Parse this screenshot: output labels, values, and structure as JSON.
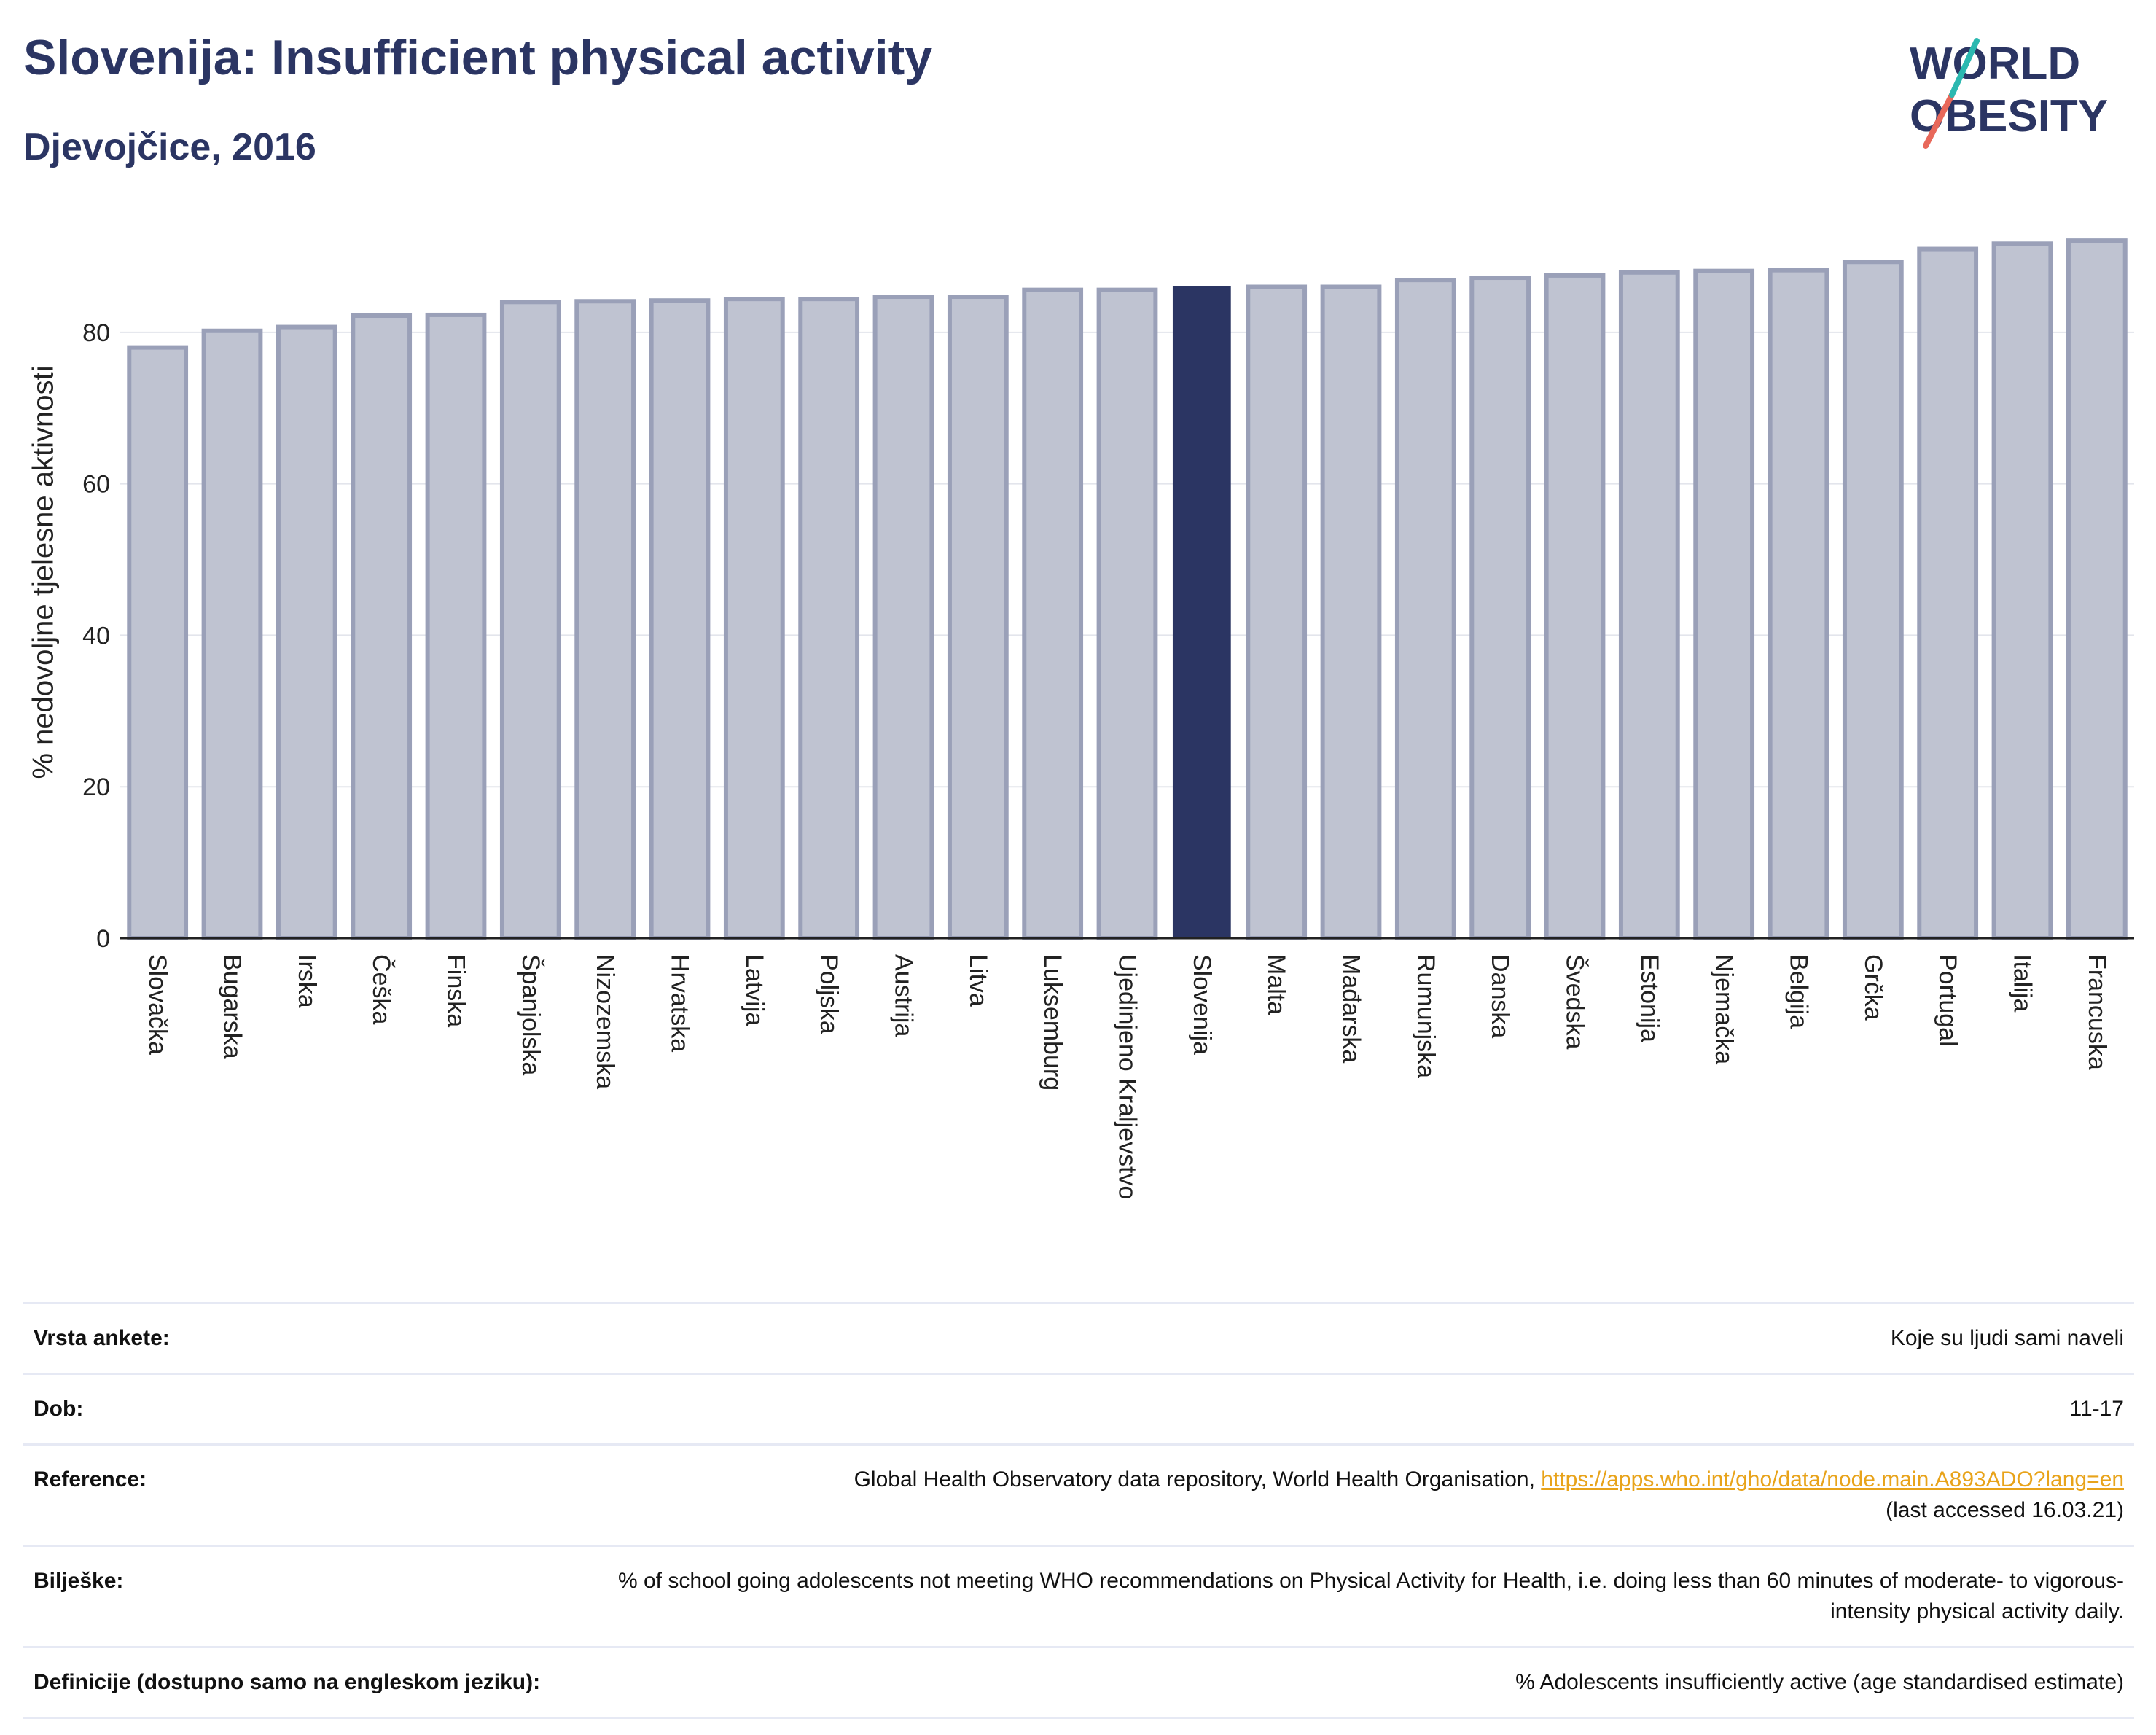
{
  "header": {
    "title": "Slovenija: Insufficient physical activity",
    "subtitle": "Djevojčice, 2016"
  },
  "logo": {
    "line1": "WORLD",
    "line2": "OBESITY"
  },
  "colors": {
    "highlight": "#2b3563",
    "bar": "#bfc3d1",
    "bar_border": "#9aa0b8",
    "title": "#2b3563",
    "link": "#e8a31a"
  },
  "chart_data": {
    "type": "bar",
    "title": "Slovenija: Insufficient physical activity",
    "subtitle": "Djevojčice, 2016",
    "ylabel": "% nedovoljne tjelesne aktivnosti",
    "xlabel": "",
    "ylim": [
      0,
      95
    ],
    "yticks": [
      0,
      20,
      40,
      60,
      80
    ],
    "grid": true,
    "highlight": "Slovenija",
    "categories": [
      "Slovačka",
      "Bugarska",
      "Irska",
      "Češka",
      "Finska",
      "Španjolska",
      "Nizozemska",
      "Hrvatska",
      "Latvija",
      "Poljska",
      "Austrija",
      "Litva",
      "Luksemburg",
      "Ujedinjeno Kraljevstvo",
      "Slovenija",
      "Malta",
      "Mađarska",
      "Rumunjska",
      "Danska",
      "Švedska",
      "Estonija",
      "Njemačka",
      "Belgija",
      "Grčka",
      "Portugal",
      "Italija",
      "Francuska"
    ],
    "values": [
      78.0,
      80.2,
      80.7,
      82.2,
      82.3,
      84.0,
      84.1,
      84.2,
      84.4,
      84.4,
      84.7,
      84.7,
      85.6,
      85.6,
      86.0,
      86.0,
      86.0,
      86.9,
      87.2,
      87.5,
      87.9,
      88.1,
      88.2,
      89.3,
      91.0,
      91.7,
      92.1
    ]
  },
  "meta": {
    "rows": [
      {
        "label": "Vrsta ankete:",
        "value": "Koje su ljudi sami naveli"
      },
      {
        "label": "Dob:",
        "value": "11-17"
      },
      {
        "label": "Reference:",
        "value": "Global Health Observatory data repository, World Health Organisation, ",
        "link": "https://apps.who.int/gho/data/node.main.A893ADO?lang=en",
        "value2": "(last accessed 16.03.21)"
      },
      {
        "label": "Bilješke:",
        "value": "% of school going adolescents not meeting WHO recommendations on Physical Activity for Health, i.e. doing less than 60 minutes of moderate- to vigorous-intensity physical activity daily."
      },
      {
        "label": "Definicije (dostupno samo na engleskom jeziku):",
        "value": "% Adolescents insufficiently active (age standardised estimate)"
      }
    ]
  }
}
